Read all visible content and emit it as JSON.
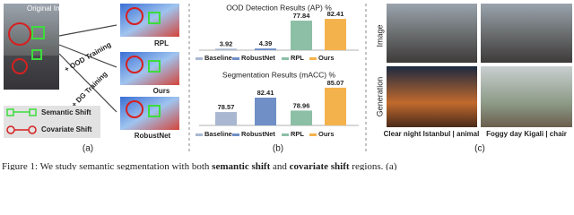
{
  "panel_a": {
    "original_label": "Original Image",
    "ood_training": "+ OOD Training",
    "dg_training": "+ DG Training",
    "result_labels": [
      "RPL",
      "Ours",
      "RobustNet"
    ],
    "legend": [
      "Semantic Shift",
      "Covariate Shift"
    ],
    "tag": "(a)"
  },
  "chart_data": [
    {
      "type": "bar",
      "title": "OOD Detection Results (AP) %",
      "categories": [
        "Baseline",
        "RobustNet",
        "RPL",
        "Ours"
      ],
      "values": [
        3.92,
        4.39,
        77.84,
        82.41
      ],
      "colors": [
        "#a9b8d0",
        "#6f8fc6",
        "#8cbfa6",
        "#f4b24c"
      ],
      "ylim": [
        0,
        85
      ]
    },
    {
      "type": "bar",
      "title": "Segmentation Results (mACC) %",
      "categories": [
        "Baseline",
        "RobustNet",
        "RPL",
        "Ours"
      ],
      "values": [
        78.57,
        82.41,
        78.96,
        85.07
      ],
      "colors": [
        "#a9b8d0",
        "#6f8fc6",
        "#8cbfa6",
        "#f4b24c"
      ],
      "ylim": [
        75,
        86
      ]
    }
  ],
  "panel_b_tag": "(b)",
  "panel_c": {
    "row_labels": [
      "Image",
      "Generation"
    ],
    "captions": [
      "Clear night Istanbul | animal",
      "Foggy day Kigali | chair"
    ],
    "tag": "(c)"
  },
  "caption": [
    "Figure 1: We study semantic segmentation with both ",
    "semantic shift",
    " and ",
    "covariate shift",
    " regions. (a)"
  ]
}
